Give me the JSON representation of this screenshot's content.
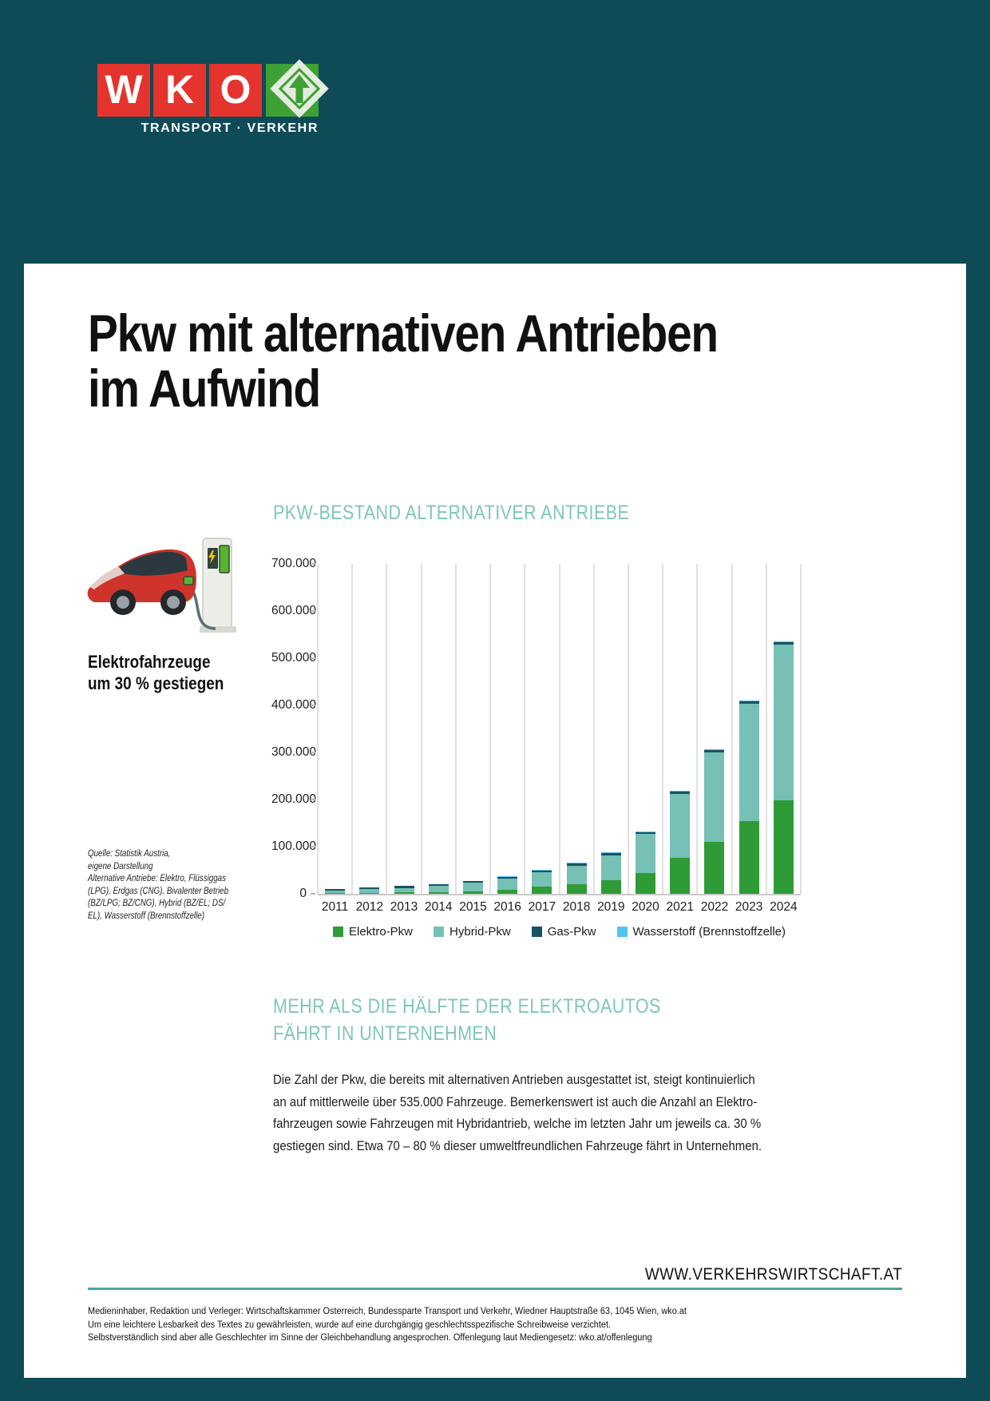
{
  "logo": {
    "letters": [
      "W",
      "K",
      "O"
    ],
    "tagline": "TRANSPORT · VERKEHR",
    "red": "#E5332D",
    "green": "#3EA135"
  },
  "title": {
    "line1": "Pkw mit alternativen Antrieben",
    "line2": "im Aufwind"
  },
  "sidebar": {
    "caption_line1": "Elektrofahrzeuge",
    "caption_line2": "um 30 % gestiegen",
    "source_lines": [
      "Quelle: Statistik Austria,",
      "eigene Darstellung",
      "Alternative Antriebe: Elektro, Flüssiggas",
      "(LPG), Erdgas (CNG), Bivalenter Betrieb",
      "(BZ/LPG; BZ/CNG), Hybrid (BZ/EL; DS/",
      "EL), Wasserstoff (Brennstoffzelle)"
    ]
  },
  "chart_data": {
    "type": "bar",
    "stacked": true,
    "title": "PKW-BESTAND ALTERNATIVER ANTRIEBE",
    "categories": [
      "2011",
      "2012",
      "2013",
      "2014",
      "2015",
      "2016",
      "2017",
      "2018",
      "2019",
      "2020",
      "2021",
      "2022",
      "2023",
      "2024"
    ],
    "series": [
      {
        "name": "Elektro-Pkw",
        "color": "#2E9B37",
        "values": [
          989,
          2070,
          2955,
          3386,
          5032,
          9073,
          14618,
          20831,
          29523,
          44507,
          76540,
          110374,
          154278,
          198500
        ]
      },
      {
        "name": "Hybrid-Pkw",
        "color": "#76C0B5",
        "values": [
          6100,
          7600,
          9700,
          13200,
          18300,
          22600,
          30500,
          39200,
          52600,
          81900,
          135800,
          189500,
          249900,
          331000
        ]
      },
      {
        "name": "Gas-Pkw",
        "color": "#1A5360",
        "values": [
          3000,
          3300,
          3600,
          3900,
          4100,
          4300,
          4600,
          5000,
          5300,
          5500,
          5600,
          5600,
          5700,
          5800
        ]
      },
      {
        "name": "Wasserstoff (Brennstoffzelle)",
        "color": "#55C3F0",
        "values": [
          0,
          0,
          0,
          0,
          0,
          30,
          40,
          50,
          60,
          60,
          60,
          60,
          70,
          80
        ]
      }
    ],
    "ylim": [
      0,
      700000
    ],
    "ytick_step": 100000,
    "ytick_labels": [
      "0",
      "100.000",
      "200.000",
      "300.000",
      "400.000",
      "500.000",
      "600.000",
      "700.000"
    ],
    "grid": "vertical-between-categories",
    "legend_position": "bottom"
  },
  "section": {
    "heading_line1": "MEHR ALS DIE HÄLFTE DER ELEKTROAUTOS",
    "heading_line2": "FÄHRT IN UNTERNEHMEN",
    "paragraph_lines": [
      "Die Zahl der Pkw, die bereits mit alternativen Antrieben ausgestattet ist, steigt kontinuierlich",
      "an auf mittlerweile über 535.000 Fahrzeuge. Bemerkenswert ist auch die Anzahl an Elektro-",
      "fahrzeugen sowie Fahrzeugen mit Hybridantrieb, welche im letzten Jahr um jeweils ca. 30 %",
      "gestiegen sind. Etwa 70 – 80 % dieser umweltfreundlichen Fahrzeuge fährt in Unternehmen."
    ]
  },
  "footer": {
    "website": "WWW.VERKEHRSWIRTSCHAFT.AT",
    "imprint_lines": [
      "Medieninhaber, Redaktion und Verleger: Wirtschaftskammer Österreich, Bundessparte Transport und Verkehr, Wiedner Hauptstraße 63, 1045 Wien, wko.at",
      "Um eine leichtere Lesbarkeit des Textes zu gewährleisten, wurde auf eine durchgängig geschlechtsspezifische Schreibweise verzichtet.",
      "Selbstverständlich sind aber alle Geschlechter im Sinne der Gleichbehandlung angesprochen. Offenlegung laut Mediengesetz: wko.at/offenlegung"
    ]
  }
}
